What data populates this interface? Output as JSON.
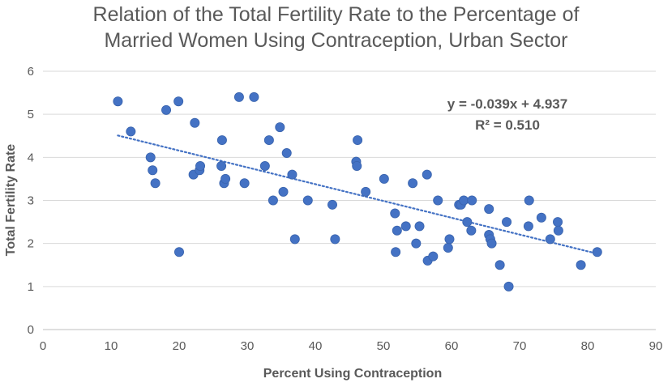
{
  "chart_data": {
    "type": "scatter",
    "title_lines": [
      "Relation of the Total Fertility Rate to the Percentage of",
      "Married Women Using Contraception, Urban Sector"
    ],
    "xlabel": "Percent Using Contraception",
    "ylabel": "Total Fertility Rate",
    "xlim": [
      0,
      90
    ],
    "ylim": [
      0,
      6
    ],
    "x_ticks": [
      "0",
      "10",
      "20",
      "30",
      "40",
      "50",
      "60",
      "70",
      "80",
      "90"
    ],
    "y_ticks": [
      "0",
      "1",
      "2",
      "3",
      "4",
      "5",
      "6"
    ],
    "grid": true,
    "marker_color": "#4472C4",
    "series": [
      {
        "name": "Urban sector",
        "points": [
          [
            11.0,
            5.3
          ],
          [
            12.9,
            4.6
          ],
          [
            15.8,
            4.0
          ],
          [
            16.1,
            3.7
          ],
          [
            16.5,
            3.4
          ],
          [
            18.1,
            5.1
          ],
          [
            19.9,
            5.3
          ],
          [
            20.0,
            1.8
          ],
          [
            22.1,
            3.6
          ],
          [
            22.3,
            4.8
          ],
          [
            23.0,
            3.7
          ],
          [
            23.1,
            3.8
          ],
          [
            26.2,
            3.8
          ],
          [
            26.3,
            4.4
          ],
          [
            26.6,
            3.4
          ],
          [
            26.8,
            3.5
          ],
          [
            28.8,
            5.4
          ],
          [
            29.6,
            3.4
          ],
          [
            31.0,
            5.4
          ],
          [
            32.6,
            3.8
          ],
          [
            33.2,
            4.4
          ],
          [
            33.8,
            3.0
          ],
          [
            34.8,
            4.7
          ],
          [
            35.3,
            3.2
          ],
          [
            35.8,
            4.1
          ],
          [
            36.6,
            3.6
          ],
          [
            37.0,
            2.1
          ],
          [
            38.9,
            3.0
          ],
          [
            42.5,
            2.9
          ],
          [
            42.9,
            2.1
          ],
          [
            46.0,
            3.9
          ],
          [
            46.1,
            3.8
          ],
          [
            46.2,
            4.4
          ],
          [
            47.4,
            3.2
          ],
          [
            50.1,
            3.5
          ],
          [
            51.7,
            2.7
          ],
          [
            51.8,
            1.8
          ],
          [
            52.0,
            2.3
          ],
          [
            53.3,
            2.4
          ],
          [
            54.3,
            3.4
          ],
          [
            54.8,
            2.0
          ],
          [
            55.3,
            2.4
          ],
          [
            56.4,
            3.6
          ],
          [
            56.5,
            1.6
          ],
          [
            57.3,
            1.7
          ],
          [
            58.0,
            3.0
          ],
          [
            59.5,
            1.9
          ],
          [
            59.7,
            2.1
          ],
          [
            61.1,
            2.9
          ],
          [
            61.4,
            2.9
          ],
          [
            61.8,
            3.0
          ],
          [
            62.3,
            2.5
          ],
          [
            62.9,
            2.3
          ],
          [
            63.0,
            3.0
          ],
          [
            65.5,
            2.8
          ],
          [
            65.5,
            2.2
          ],
          [
            65.7,
            2.1
          ],
          [
            65.9,
            2.0
          ],
          [
            67.1,
            1.5
          ],
          [
            68.1,
            2.5
          ],
          [
            68.4,
            1.0
          ],
          [
            71.3,
            2.4
          ],
          [
            71.4,
            3.0
          ],
          [
            73.2,
            2.6
          ],
          [
            74.5,
            2.1
          ],
          [
            75.6,
            2.5
          ],
          [
            75.7,
            2.3
          ],
          [
            79.0,
            1.5
          ],
          [
            81.4,
            1.8
          ]
        ]
      }
    ],
    "trendline": {
      "type": "linear",
      "style": "dotted",
      "slope": -0.039,
      "intercept": 4.937,
      "x_range": [
        11.0,
        81.4
      ],
      "equation_label": "y = -0.039x + 4.937",
      "r2_label": "R² = 0.510"
    }
  }
}
